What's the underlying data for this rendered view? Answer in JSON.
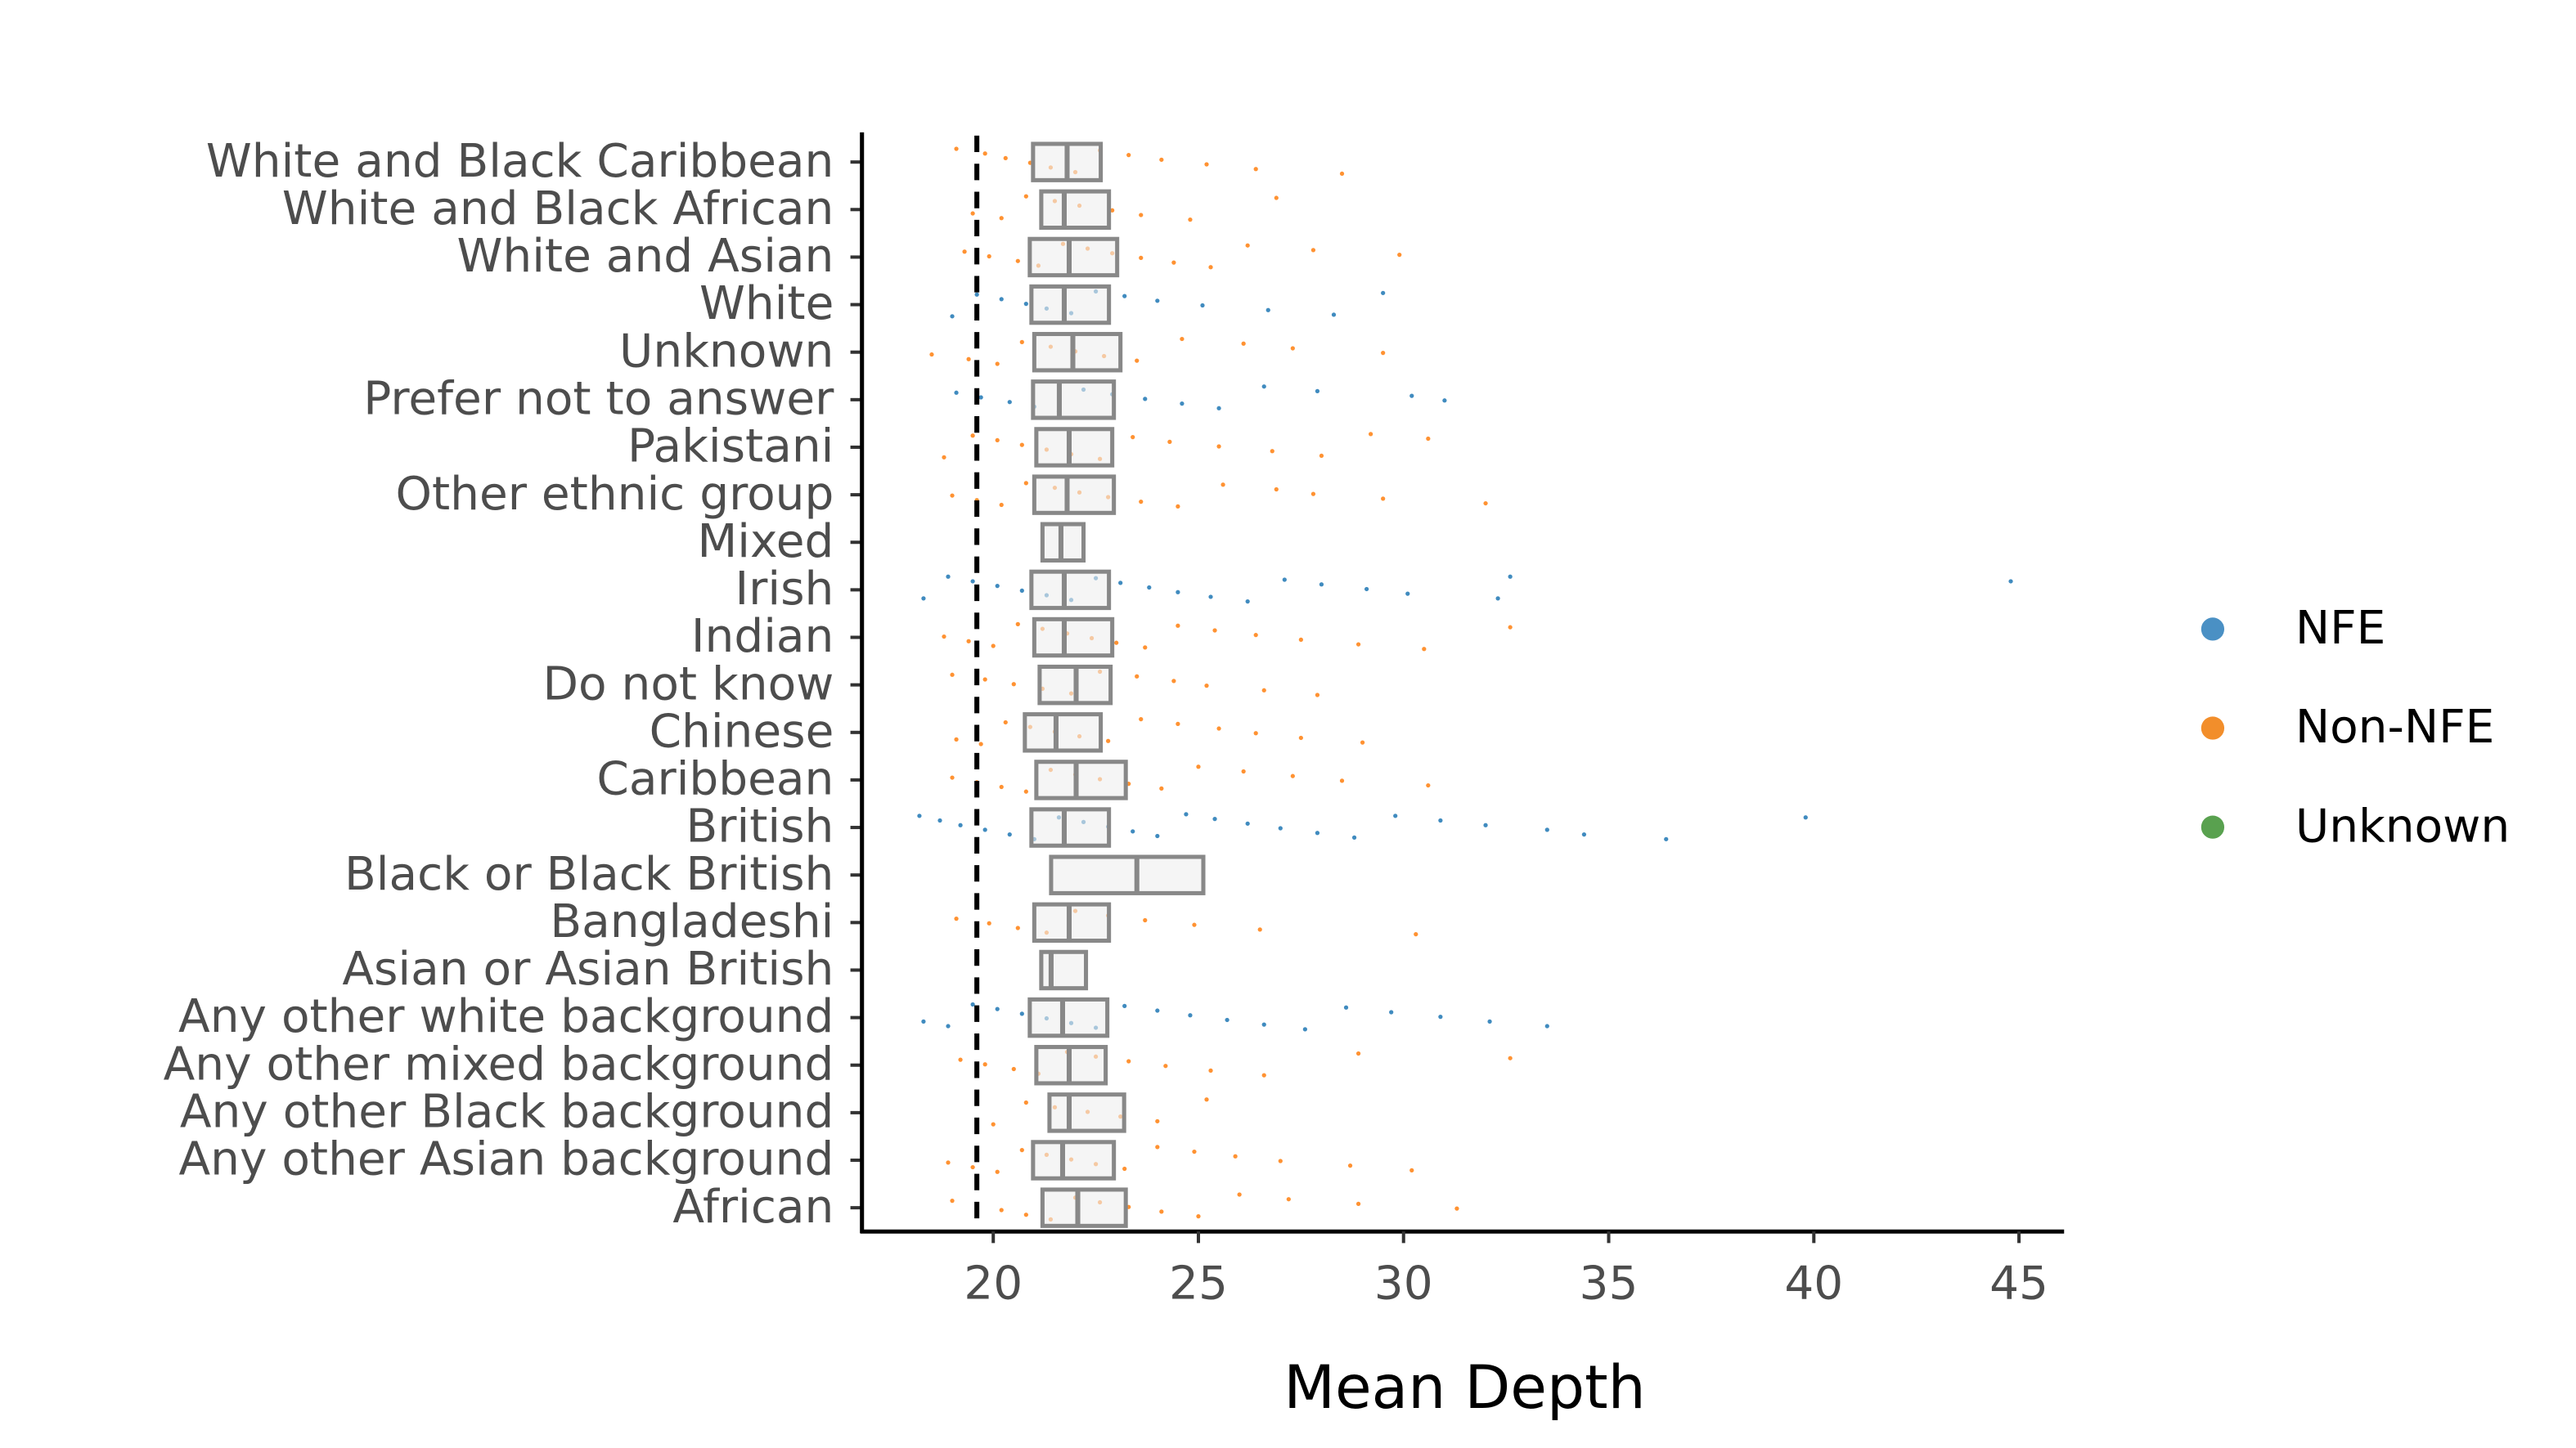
{
  "chart_data": {
    "type": "box_jitter",
    "x_label": "Mean Depth",
    "categories": [
      "White and Black Caribbean",
      "White and Black African",
      "White and Asian",
      "White",
      "Unknown",
      "Prefer not to answer",
      "Pakistani",
      "Other ethnic group",
      "Mixed",
      "Irish",
      "Indian",
      "Do not know",
      "Chinese",
      "Caribbean",
      "British",
      "Black or Black British",
      "Bangladeshi",
      "Asian or Asian British",
      "Any other white background",
      "Any other mixed background",
      "Any other Black background",
      "Any other Asian background",
      "African"
    ],
    "boxes": [
      {
        "q1": 20.97,
        "median": 21.8,
        "q3": 22.62
      },
      {
        "q1": 21.17,
        "median": 21.73,
        "q3": 22.82
      },
      {
        "q1": 20.89,
        "median": 21.85,
        "q3": 23.02
      },
      {
        "q1": 20.93,
        "median": 21.73,
        "q3": 22.82
      },
      {
        "q1": 21.0,
        "median": 21.94,
        "q3": 23.1
      },
      {
        "q1": 20.97,
        "median": 21.61,
        "q3": 22.94
      },
      {
        "q1": 21.05,
        "median": 21.85,
        "q3": 22.9
      },
      {
        "q1": 21.0,
        "median": 21.8,
        "q3": 22.94
      },
      {
        "q1": 21.2,
        "median": 21.65,
        "q3": 22.2
      },
      {
        "q1": 20.93,
        "median": 21.73,
        "q3": 22.82
      },
      {
        "q1": 21.0,
        "median": 21.73,
        "q3": 22.9
      },
      {
        "q1": 21.13,
        "median": 22.02,
        "q3": 22.86
      },
      {
        "q1": 20.77,
        "median": 21.53,
        "q3": 22.62
      },
      {
        "q1": 21.05,
        "median": 22.02,
        "q3": 23.23
      },
      {
        "q1": 20.93,
        "median": 21.73,
        "q3": 22.82
      },
      {
        "q1": 21.41,
        "median": 23.5,
        "q3": 25.12
      },
      {
        "q1": 21.0,
        "median": 21.85,
        "q3": 22.82
      },
      {
        "q1": 21.17,
        "median": 21.41,
        "q3": 22.26
      },
      {
        "q1": 20.89,
        "median": 21.69,
        "q3": 22.78
      },
      {
        "q1": 21.05,
        "median": 21.85,
        "q3": 22.74
      },
      {
        "q1": 21.37,
        "median": 21.85,
        "q3": 23.19
      },
      {
        "q1": 20.97,
        "median": 21.69,
        "q3": 22.94
      },
      {
        "q1": 21.2,
        "median": 22.06,
        "q3": 23.23
      }
    ],
    "reference_line": 19.6,
    "series": [
      {
        "name": "NFE",
        "color": "#1f77b4",
        "legend_color": "#4a90c4",
        "values": [
          null,
          null,
          null,
          [
            19.0,
            19.6,
            20.2,
            20.8,
            21.3,
            21.9,
            22.5,
            23.2,
            24.0,
            25.1,
            26.7,
            28.3,
            29.5
          ],
          null,
          [
            19.1,
            19.7,
            20.4,
            21.0,
            21.6,
            22.2,
            22.9,
            23.7,
            24.6,
            25.5,
            26.6,
            27.9,
            30.2,
            31.0
          ],
          null,
          null,
          null,
          [
            18.3,
            18.9,
            19.5,
            20.1,
            20.7,
            21.3,
            21.9,
            22.5,
            23.1,
            23.8,
            24.5,
            25.3,
            26.2,
            27.1,
            28.0,
            29.1,
            30.1,
            32.3,
            32.6,
            44.8
          ],
          null,
          null,
          null,
          null,
          [
            18.2,
            18.7,
            19.2,
            19.8,
            20.4,
            21.0,
            21.6,
            22.2,
            22.8,
            23.4,
            24.0,
            24.7,
            25.4,
            26.2,
            27.0,
            27.9,
            28.8,
            29.8,
            30.9,
            32.0,
            33.5,
            34.4,
            36.4,
            39.8
          ],
          null,
          null,
          null,
          [
            18.3,
            18.9,
            19.5,
            20.1,
            20.7,
            21.3,
            21.9,
            22.5,
            23.2,
            24.0,
            24.8,
            25.7,
            26.6,
            27.6,
            28.6,
            29.7,
            30.9,
            32.1,
            33.5
          ],
          null,
          null,
          null,
          null
        ]
      },
      {
        "name": "Non-NFE",
        "color": "#ff7f0e",
        "legend_color": "#f28e2b",
        "values": [
          [
            19.1,
            19.8,
            20.3,
            20.9,
            21.4,
            22.0,
            22.6,
            23.3,
            24.1,
            25.2,
            26.4,
            28.5
          ],
          [
            19.5,
            20.2,
            20.8,
            21.5,
            22.1,
            22.9,
            23.6,
            24.8,
            26.9
          ],
          [
            19.3,
            19.9,
            20.6,
            21.1,
            21.7,
            22.3,
            22.9,
            23.6,
            24.4,
            25.3,
            26.2,
            27.8,
            29.9
          ],
          null,
          [
            18.5,
            19.4,
            20.1,
            20.7,
            21.4,
            22.0,
            22.7,
            23.5,
            24.6,
            26.1,
            27.3,
            29.5
          ],
          null,
          [
            18.8,
            19.5,
            20.1,
            20.7,
            21.3,
            21.9,
            22.6,
            23.4,
            24.3,
            25.5,
            26.8,
            28.0,
            29.2,
            30.6
          ],
          [
            19.0,
            19.6,
            20.2,
            20.8,
            21.5,
            22.1,
            22.8,
            23.6,
            24.5,
            25.6,
            26.9,
            27.8,
            29.5,
            32.0
          ],
          null,
          null,
          [
            18.8,
            19.4,
            20.0,
            20.6,
            21.2,
            21.8,
            22.4,
            23.0,
            23.7,
            24.5,
            25.4,
            26.4,
            27.5,
            28.9,
            30.5,
            32.6
          ],
          [
            19.0,
            19.8,
            20.5,
            21.2,
            21.9,
            22.6,
            23.5,
            24.4,
            25.2,
            26.6,
            27.9
          ],
          [
            19.1,
            19.7,
            20.3,
            20.9,
            21.5,
            22.1,
            22.8,
            23.6,
            24.5,
            25.5,
            26.4,
            27.5,
            29.0
          ],
          [
            19.0,
            19.6,
            20.2,
            20.8,
            21.4,
            22.0,
            22.6,
            23.3,
            24.1,
            25.0,
            26.1,
            27.3,
            28.5,
            30.6
          ],
          null,
          null,
          [
            19.1,
            19.9,
            20.6,
            21.3,
            22.0,
            22.8,
            23.7,
            24.9,
            26.5,
            30.3
          ],
          null,
          null,
          [
            19.2,
            19.8,
            20.5,
            21.1,
            21.8,
            22.5,
            23.3,
            24.2,
            25.3,
            26.6,
            28.9,
            32.6
          ],
          [
            20.0,
            20.8,
            21.5,
            22.3,
            23.1,
            24.0,
            25.2
          ],
          [
            18.9,
            19.5,
            20.1,
            20.7,
            21.3,
            21.9,
            22.5,
            23.2,
            24.0,
            24.9,
            25.9,
            27.0,
            28.7,
            30.2
          ],
          [
            19.0,
            19.6,
            20.2,
            20.8,
            21.4,
            22.0,
            22.6,
            23.3,
            24.1,
            25.0,
            26.0,
            27.2,
            28.9,
            31.3
          ]
        ]
      },
      {
        "name": "Unknown",
        "color": "#2ca02c",
        "legend_color": "#59a14f",
        "values": [
          null,
          null,
          null,
          null,
          null,
          null,
          null,
          null,
          null,
          null,
          null,
          null,
          null,
          null,
          null,
          null,
          null,
          null,
          null,
          null,
          null,
          null,
          null
        ]
      }
    ],
    "xlim": [
      16.8,
      46.1
    ],
    "xticks": [
      20,
      25,
      30,
      35,
      40,
      45
    ]
  }
}
